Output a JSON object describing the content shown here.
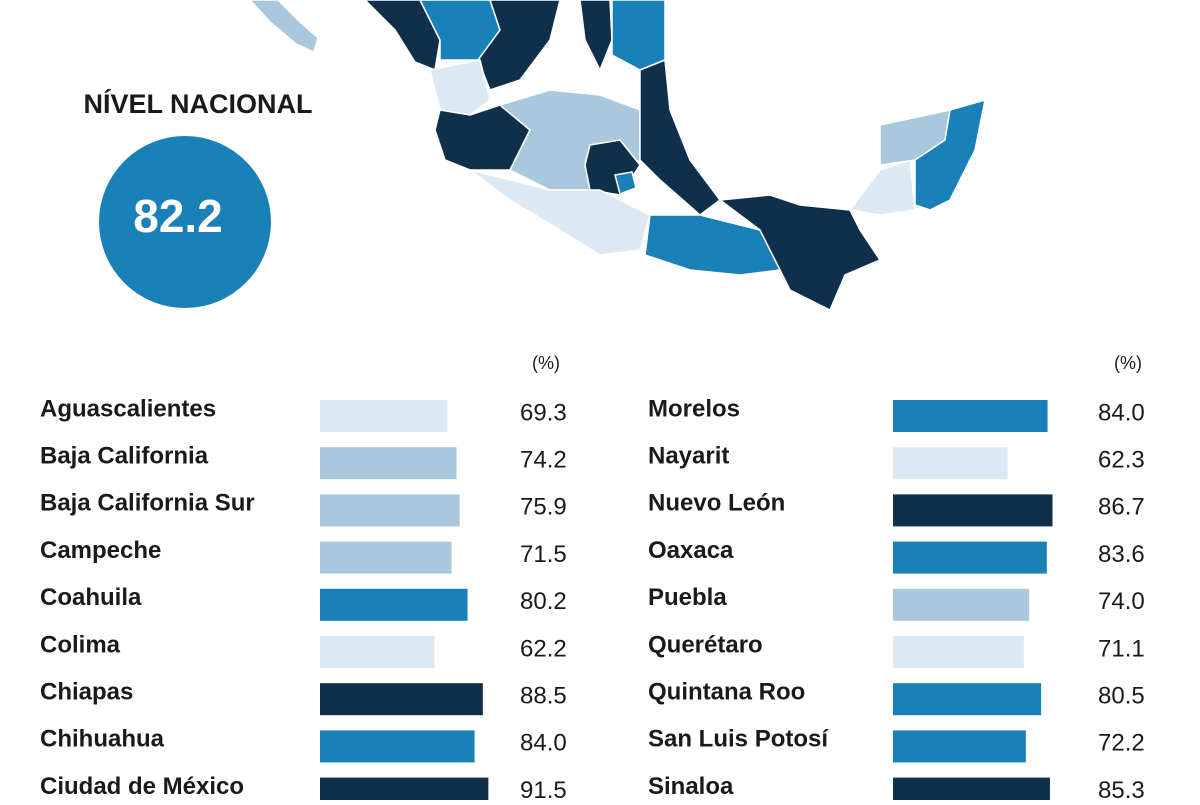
{
  "national": {
    "label": "NÍVEL NACIONAL",
    "value": 82.2
  },
  "chart_data": [
    {
      "type": "bar",
      "orientation": "horizontal",
      "unit_label": "(%)",
      "categories": [
        "Aguascalientes",
        "Baja California",
        "Baja California Sur",
        "Campeche",
        "Coahuila",
        "Colima",
        "Chiapas",
        "Chihuahua",
        "Ciudad de México"
      ],
      "values": [
        69.3,
        74.2,
        75.9,
        71.5,
        80.2,
        62.2,
        88.5,
        84.0,
        91.5
      ],
      "value_labels": [
        "69.3",
        "74.2",
        "75.9",
        "71.5",
        "80.2",
        "62.2",
        "88.5",
        "84.0",
        "91.5"
      ],
      "colors": [
        "#dce9f2",
        "#a9c8de",
        "#a9c8de",
        "#a9c8de",
        "#1a80b8",
        "#dce9f2",
        "#0f2f4a",
        "#1a80b8",
        "#0f2f4a"
      ]
    },
    {
      "type": "bar",
      "orientation": "horizontal",
      "unit_label": "(%)",
      "categories": [
        "Morelos",
        "Nayarit",
        "Nuevo León",
        "Oaxaca",
        "Puebla",
        "Querétaro",
        "Quintana Roo",
        "San Luis Potosí",
        "Sinaloa"
      ],
      "values": [
        84.0,
        62.3,
        86.7,
        83.6,
        74.0,
        71.1,
        80.5,
        72.2,
        85.3
      ],
      "value_labels": [
        "84.0",
        "62.3",
        "86.7",
        "83.6",
        "74.0",
        "71.1",
        "80.5",
        "72.2",
        "85.3"
      ],
      "colors": [
        "#1a80b8",
        "#dce9f2",
        "#0f2f4a",
        "#1a80b8",
        "#a9c8de",
        "#dce9f2",
        "#1a80b8",
        "#1a80b8",
        "#0f2f4a"
      ]
    }
  ]
}
